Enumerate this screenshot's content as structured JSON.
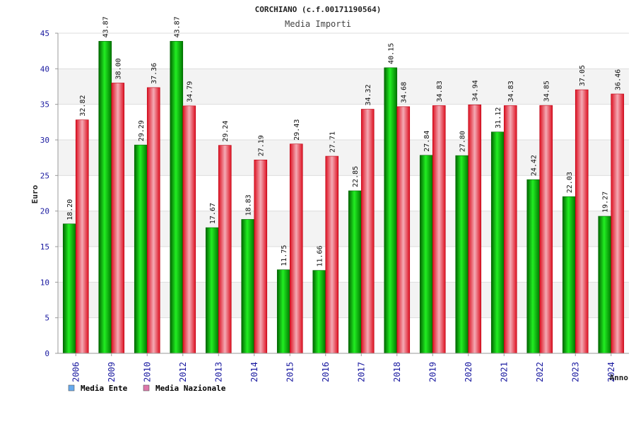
{
  "header": {
    "title": "CORCHIANO (c.f.00171190564)",
    "subtitle": "Media Importi"
  },
  "chart_data": {
    "type": "bar",
    "title": "CORCHIANO (c.f.00171190564)",
    "subtitle": "Media Importi",
    "xlabel": "Anno",
    "ylabel": "Euro",
    "ylim": [
      0,
      45
    ],
    "yticks": [
      0,
      5,
      10,
      15,
      20,
      25,
      30,
      35,
      40,
      45
    ],
    "grid": true,
    "legend_position": "bottom-left",
    "categories": [
      "2006",
      "2009",
      "2010",
      "2012",
      "2013",
      "2014",
      "2015",
      "2016",
      "2017",
      "2018",
      "2019",
      "2020",
      "2021",
      "2022",
      "2023",
      "2024"
    ],
    "series": [
      {
        "name": "Media Ente",
        "color": "#00cc00",
        "values": [
          18.2,
          43.87,
          29.29,
          43.87,
          17.67,
          18.83,
          11.75,
          11.66,
          22.85,
          40.15,
          27.84,
          27.8,
          31.12,
          24.42,
          22.03,
          19.27
        ],
        "labels": [
          "18.20",
          "43.87",
          "29.29",
          "43.87",
          "17.67",
          "18.83",
          "11.75",
          "11.66",
          "22.85",
          "40.15",
          "27.84",
          "27.80",
          "31.12",
          "24.42",
          "22.03",
          "19.27"
        ]
      },
      {
        "name": "Media Nazionale",
        "color": "#ee2233",
        "values": [
          32.82,
          38.0,
          37.36,
          34.79,
          29.24,
          27.19,
          29.43,
          27.71,
          34.32,
          34.68,
          34.83,
          34.94,
          34.83,
          34.85,
          37.05,
          36.46
        ],
        "labels": [
          "32.82",
          "38.00",
          "37.36",
          "34.79",
          "29.24",
          "27.19",
          "29.43",
          "27.71",
          "34.32",
          "34.68",
          "34.83",
          "34.94",
          "34.83",
          "34.85",
          "37.05",
          "36.46"
        ]
      }
    ]
  },
  "legend": {
    "items": [
      {
        "label": "Media Ente",
        "swatch_color": "#66aaee"
      },
      {
        "label": "Media Nazionale",
        "swatch_color": "#dd77aa"
      }
    ]
  }
}
